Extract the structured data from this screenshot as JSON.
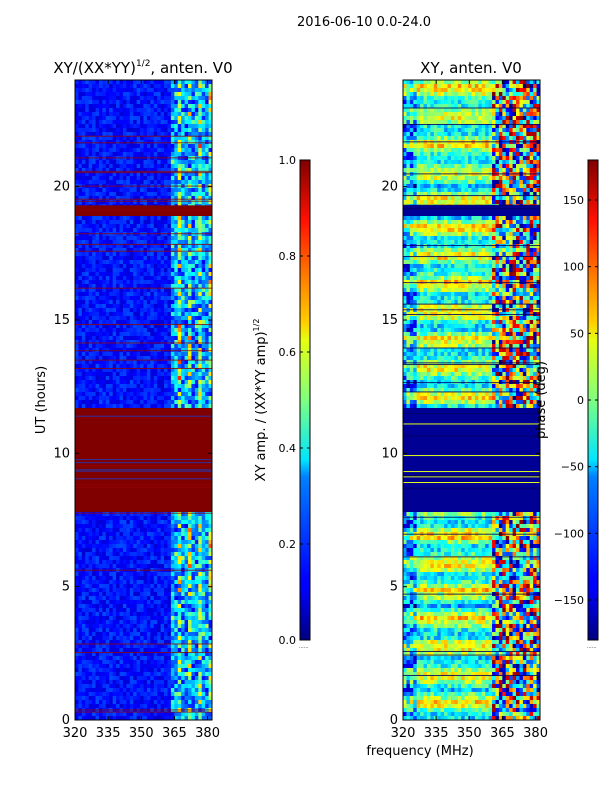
{
  "figure": {
    "suptitle": "2016-06-10 0.0-24.0",
    "xlabel": "frequency (MHz)"
  },
  "chart_data": [
    {
      "type": "heatmap",
      "title": "XY/(XX*YY)",
      "title_sup": "1/2",
      "title_tail": ", anten. V0",
      "ylabel": "UT (hours)",
      "xlim": [
        320,
        382
      ],
      "ylim": [
        0,
        24
      ],
      "xticks": [
        320,
        335,
        350,
        365,
        380
      ],
      "yticks": [
        0,
        5,
        10,
        15,
        20
      ],
      "colorbar": {
        "label": "XY amp. / (XX*YY amp)",
        "label_sup": "1/2",
        "range": [
          0.0,
          1.0
        ],
        "ticks": [
          "0.0",
          "0.2",
          "0.4",
          "0.6",
          "0.8",
          "1.0"
        ],
        "extra": "......"
      },
      "flagged_bands_ut": [
        [
          7.8,
          11.7
        ],
        [
          18.9,
          19.3
        ]
      ],
      "active_band_mhz": [
        363,
        382
      ]
    },
    {
      "type": "heatmap",
      "title": "XY, anten. V0",
      "xlim": [
        320,
        382
      ],
      "ylim": [
        0,
        24
      ],
      "xticks": [
        320,
        335,
        350,
        365,
        380
      ],
      "yticks": [
        0,
        5,
        10,
        15,
        20
      ],
      "colorbar": {
        "label": "phase (deg)",
        "range": [
          -180,
          180
        ],
        "ticks": [
          "−150",
          "−100",
          "−50",
          "0",
          "50",
          "100",
          "150"
        ],
        "extra": "......"
      },
      "flagged_bands_ut": [
        [
          7.8,
          11.7
        ],
        [
          18.9,
          19.3
        ]
      ]
    }
  ],
  "colormap": {
    "name": "jet",
    "low": "#00007f",
    "mid": "#7fff7f",
    "high": "#7f0000"
  }
}
